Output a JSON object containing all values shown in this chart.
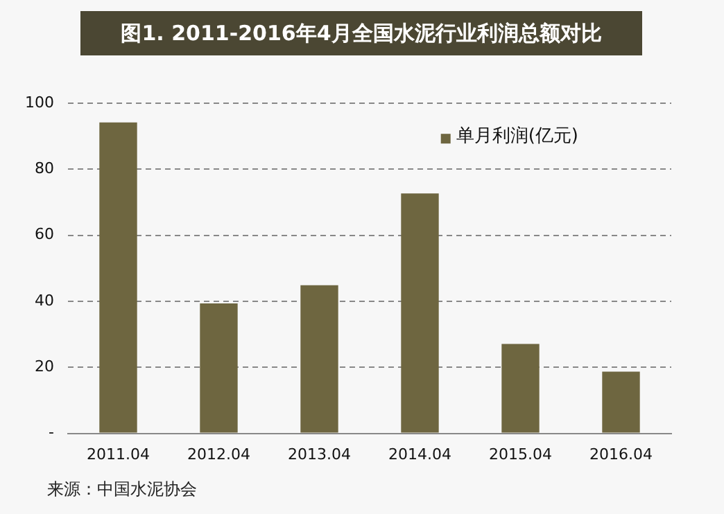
{
  "chart_data": {
    "type": "bar",
    "title": "图1.  2011-2016年4月全国水泥行业利润总额对比",
    "categories": [
      "2011.04",
      "2012.04",
      "2013.04",
      "2014.04",
      "2015.04",
      "2016.04"
    ],
    "series": [
      {
        "name": "单月利润(亿元)",
        "color": "#6e6640",
        "values": [
          94.2,
          39.4,
          44.9,
          72.7,
          27.1,
          18.7
        ]
      }
    ],
    "ylim": [
      0,
      100
    ],
    "yticks": [
      {
        "value": 0,
        "label": "-"
      },
      20,
      40,
      60,
      80,
      100
    ],
    "grid": "y",
    "legend": "top right",
    "annotations": [
      "来源：中国水泥协会"
    ]
  }
}
